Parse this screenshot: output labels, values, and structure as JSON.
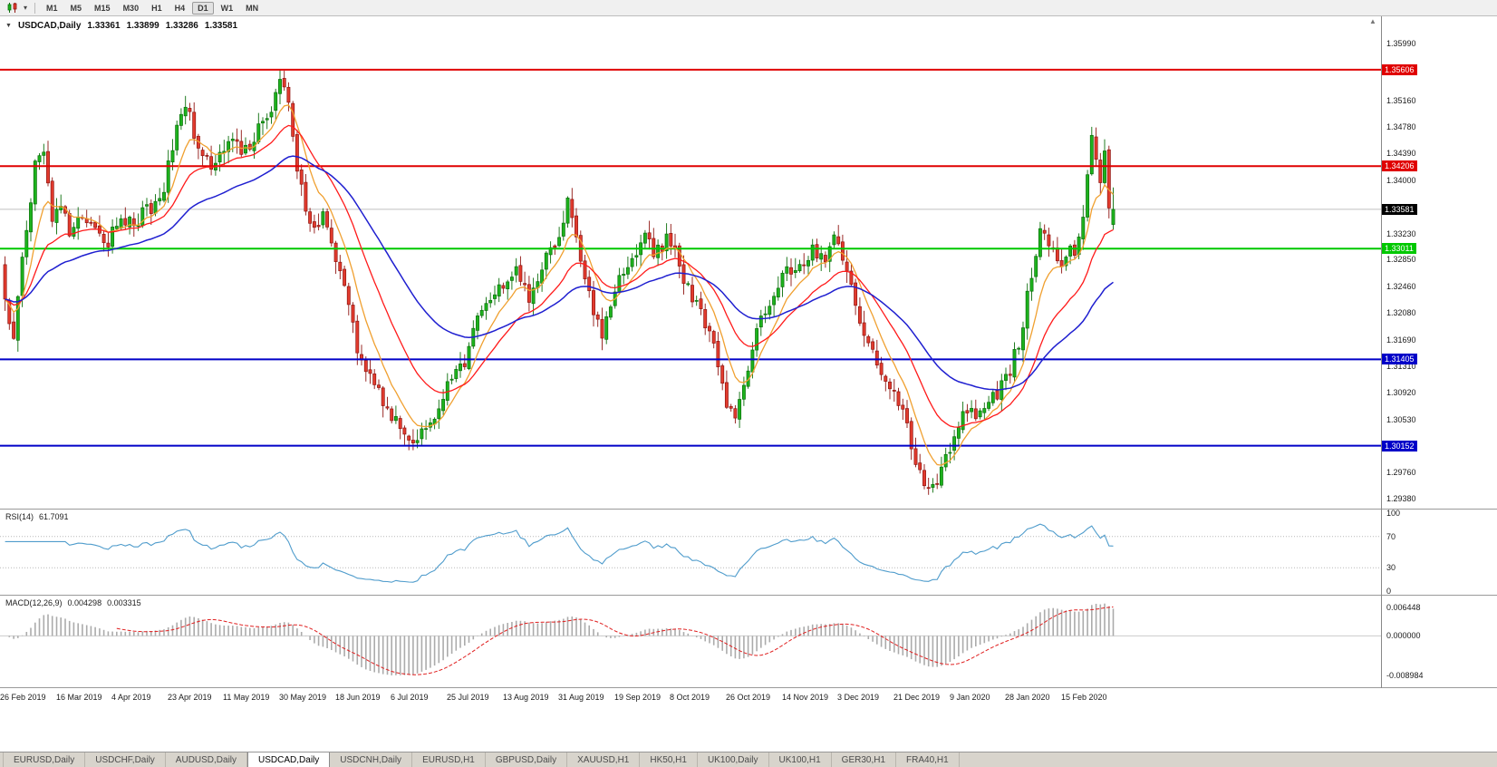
{
  "icons": {
    "chart_marker": "▼",
    "toolbar_dropdown": "▾",
    "scroll_up": "▲"
  },
  "toolbar": {
    "timeframes": [
      "M1",
      "M5",
      "M15",
      "M30",
      "H1",
      "H4",
      "D1",
      "W1",
      "MN"
    ],
    "active_timeframe": "D1"
  },
  "chart": {
    "title": "USDCAD,Daily",
    "ohlc": {
      "open": "1.33361",
      "high": "1.33899",
      "low": "1.33286",
      "close": "1.33581"
    }
  },
  "chart_data": {
    "type": "candlestick",
    "symbol": "USDCAD",
    "period": "Daily",
    "candle_count": 259,
    "candles_per_label": 13,
    "price_axis": {
      "max": 1.3638,
      "min": 1.2924,
      "ticks": [
        "1.35990",
        "1.35160",
        "1.34780",
        "1.34390",
        "1.34000",
        "1.33230",
        "1.32850",
        "1.32460",
        "1.32080",
        "1.31690",
        "1.31310",
        "1.30920",
        "1.30530",
        "1.29760",
        "1.29380"
      ]
    },
    "levels": [
      {
        "value": 1.35606,
        "label": "1.35606",
        "color": "#e00000",
        "width": 2
      },
      {
        "value": 1.34206,
        "label": "1.34206",
        "color": "#e00000",
        "width": 2
      },
      {
        "value": 1.33011,
        "label": "1.33011",
        "color": "#00c800",
        "width": 2
      },
      {
        "value": 1.31405,
        "label": "1.31405",
        "color": "#0000c8",
        "width": 2
      },
      {
        "value": 1.30152,
        "label": "1.30152",
        "color": "#0000c8",
        "width": 2
      }
    ],
    "current_price": {
      "value": 1.33581,
      "label": "1.33581",
      "line_color": "#c0c0c0",
      "box_color": "#000000"
    },
    "last_candle": {
      "o": 1.33361,
      "h": 1.33899,
      "l": 1.33286,
      "c": 1.33581
    },
    "x_axis_dates": [
      "26 Feb 2019",
      "16 Mar 2019",
      "4 Apr 2019",
      "23 Apr 2019",
      "11 May 2019",
      "30 May 2019",
      "18 Jun 2019",
      "6 Jul 2019",
      "25 Jul 2019",
      "13 Aug 2019",
      "31 Aug 2019",
      "19 Sep 2019",
      "8 Oct 2019",
      "26 Oct 2019",
      "14 Nov 2019",
      "3 Dec 2019",
      "21 Dec 2019",
      "9 Jan 2020",
      "28 Jan 2020",
      "15 Feb 2020"
    ],
    "waypoints": [
      [
        0,
        1.3235
      ],
      [
        2,
        1.316
      ],
      [
        4,
        1.329
      ],
      [
        7,
        1.342
      ],
      [
        9,
        1.3445
      ],
      [
        11,
        1.334
      ],
      [
        13,
        1.337
      ],
      [
        15,
        1.333
      ],
      [
        18,
        1.3355
      ],
      [
        21,
        1.333
      ],
      [
        24,
        1.331
      ],
      [
        27,
        1.3345
      ],
      [
        30,
        1.334
      ],
      [
        34,
        1.336
      ],
      [
        37,
        1.339
      ],
      [
        40,
        1.348
      ],
      [
        42,
        1.351
      ],
      [
        45,
        1.345
      ],
      [
        48,
        1.342
      ],
      [
        50,
        1.344
      ],
      [
        53,
        1.3465
      ],
      [
        56,
        1.344
      ],
      [
        59,
        1.3475
      ],
      [
        62,
        1.35
      ],
      [
        64,
        1.355
      ],
      [
        66,
        1.3505
      ],
      [
        68,
        1.342
      ],
      [
        70,
        1.3355
      ],
      [
        72,
        1.333
      ],
      [
        74,
        1.3355
      ],
      [
        76,
        1.331
      ],
      [
        78,
        1.327
      ],
      [
        80,
        1.322
      ],
      [
        82,
        1.316
      ],
      [
        84,
        1.313
      ],
      [
        86,
        1.31
      ],
      [
        88,
        1.308
      ],
      [
        90,
        1.306
      ],
      [
        93,
        1.304
      ],
      [
        96,
        1.3022
      ],
      [
        98,
        1.305
      ],
      [
        101,
        1.3072
      ],
      [
        104,
        1.311
      ],
      [
        107,
        1.3135
      ],
      [
        110,
        1.32
      ],
      [
        113,
        1.323
      ],
      [
        116,
        1.325
      ],
      [
        119,
        1.3268
      ],
      [
        122,
        1.3225
      ],
      [
        125,
        1.328
      ],
      [
        128,
        1.33
      ],
      [
        130,
        1.333
      ],
      [
        131,
        1.3368
      ],
      [
        133,
        1.331
      ],
      [
        135,
        1.3255
      ],
      [
        137,
        1.3205
      ],
      [
        139,
        1.318
      ],
      [
        141,
        1.3215
      ],
      [
        143,
        1.326
      ],
      [
        146,
        1.329
      ],
      [
        149,
        1.332
      ],
      [
        151,
        1.33
      ],
      [
        154,
        1.3312
      ],
      [
        156,
        1.3298
      ],
      [
        158,
        1.326
      ],
      [
        161,
        1.322
      ],
      [
        164,
        1.318
      ],
      [
        166,
        1.313
      ],
      [
        168,
        1.3062
      ],
      [
        170,
        1.3058
      ],
      [
        173,
        1.313
      ],
      [
        176,
        1.32
      ],
      [
        179,
        1.3242
      ],
      [
        182,
        1.3265
      ],
      [
        185,
        1.328
      ],
      [
        188,
        1.3302
      ],
      [
        191,
        1.3288
      ],
      [
        193,
        1.3312
      ],
      [
        195,
        1.329
      ],
      [
        197,
        1.325
      ],
      [
        199,
        1.32
      ],
      [
        201,
        1.316
      ],
      [
        203,
        1.313
      ],
      [
        205,
        1.311
      ],
      [
        208,
        1.308
      ],
      [
        210,
        1.304
      ],
      [
        212,
        1.299
      ],
      [
        214,
        1.2962
      ],
      [
        216,
        1.2956
      ],
      [
        218,
        1.2978
      ],
      [
        220,
        1.3012
      ],
      [
        222,
        1.305
      ],
      [
        224,
        1.3072
      ],
      [
        227,
        1.3058
      ],
      [
        230,
        1.3082
      ],
      [
        233,
        1.3112
      ],
      [
        236,
        1.316
      ],
      [
        238,
        1.323
      ],
      [
        241,
        1.333
      ],
      [
        243,
        1.331
      ],
      [
        245,
        1.3278
      ],
      [
        247,
        1.3288
      ],
      [
        249,
        1.3302
      ],
      [
        251,
        1.334
      ],
      [
        252,
        1.34
      ],
      [
        253,
        1.346
      ],
      [
        254,
        1.3435
      ],
      [
        255,
        1.34
      ],
      [
        256,
        1.3435
      ],
      [
        257,
        1.337
      ],
      [
        258,
        1.33581
      ]
    ],
    "pinned_extremes": [
      {
        "i": 64,
        "h": 1.356
      },
      {
        "i": 96,
        "l": 1.30152
      },
      {
        "i": 216,
        "l": 1.2952
      },
      {
        "i": 253,
        "h": 1.3468
      }
    ],
    "candle_colors": {
      "up": "#1db31d",
      "up_border": "#0b6e0b",
      "down": "#e23b2e",
      "down_border": "#8f1410"
    },
    "moving_averages": [
      {
        "period": 8,
        "color": "#f0a030",
        "width": 1.3
      },
      {
        "period": 20,
        "color": "#ff1a1a",
        "width": 1.3
      },
      {
        "period": 45,
        "color": "#1f1fd0",
        "width": 1.5
      }
    ],
    "indicators": {
      "rsi": {
        "label": "RSI(14)",
        "value": "61.7091",
        "period": 14,
        "levels": [
          "100",
          "70",
          "30",
          "0"
        ],
        "line_color": "#4f9ccc"
      },
      "macd": {
        "label": "MACD(12,26,9)",
        "main": "0.004298",
        "signal": "0.003315",
        "fast": 12,
        "slow": 26,
        "signal_period": 9,
        "axis_ticks": [
          "0.006448",
          "0.000000",
          "-0.008984"
        ],
        "scale_max": 0.0085,
        "scale_min": -0.011,
        "histogram_color": "#ababab",
        "signal_color": "#e01f1f"
      }
    }
  },
  "bottom_tabs": {
    "active": "USDCAD,Daily",
    "tabs": [
      "EURUSD,Daily",
      "USDCHF,Daily",
      "AUDUSD,Daily",
      "USDCAD,Daily",
      "USDCNH,Daily",
      "EURUSD,H1",
      "GBPUSD,Daily",
      "XAUUSD,H1",
      "HK50,H1",
      "UK100,Daily",
      "UK100,H1",
      "GER30,H1",
      "FRA40,H1"
    ]
  }
}
